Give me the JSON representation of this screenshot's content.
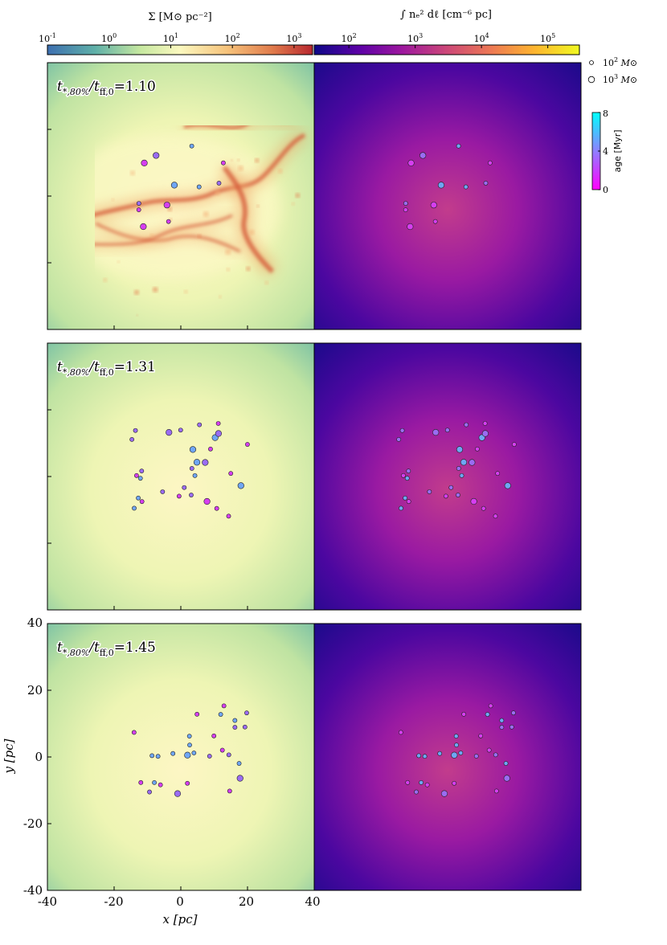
{
  "colorbar_sigma": {
    "label": "Σ [M⊙ pc⁻²]",
    "ticks": [
      {
        "base": "10",
        "exp": "-1",
        "value": 0.1
      },
      {
        "base": "10",
        "exp": "0",
        "value": 1
      },
      {
        "base": "10",
        "exp": "1",
        "value": 10
      },
      {
        "base": "10",
        "exp": "2",
        "value": 100
      },
      {
        "base": "10",
        "exp": "3",
        "value": 1000
      }
    ],
    "range": [
      0.1,
      2000
    ],
    "scale": "log",
    "colormap": "Spectral_r-like",
    "colors": [
      "#3d6fb0",
      "#5fb0a8",
      "#c6e8a0",
      "#fbf8bf",
      "#f6c27a",
      "#e07a4b",
      "#b8272f"
    ]
  },
  "colorbar_em": {
    "label": "∫ nₑ² dℓ [cm⁻⁶ pc]",
    "ticks": [
      {
        "base": "10",
        "exp": "2",
        "value": 100
      },
      {
        "base": "10",
        "exp": "3",
        "value": 1000
      },
      {
        "base": "10",
        "exp": "4",
        "value": 10000
      },
      {
        "base": "10",
        "exp": "5",
        "value": 100000
      }
    ],
    "range": [
      30,
      300000
    ],
    "scale": "log",
    "colormap": "plasma",
    "colors": [
      "#0d0887",
      "#5c01a6",
      "#9c179e",
      "#cc4778",
      "#ed7953",
      "#fdb42f",
      "#f0f921"
    ]
  },
  "mass_legend": [
    {
      "exp": "2",
      "unit": "M⊙",
      "size": "small"
    },
    {
      "exp": "3",
      "unit": "M⊙",
      "size": "large"
    }
  ],
  "age_colorbar": {
    "label": "age [Myr]",
    "ticks": [
      "0",
      "4",
      "8"
    ],
    "range": [
      0,
      8
    ],
    "colors": [
      "#ff00ff",
      "#8f7fff",
      "#00ffff"
    ]
  },
  "panels": [
    {
      "label_ratio": "1.10"
    },
    {
      "label_ratio": "1.31"
    },
    {
      "label_ratio": "1.45"
    }
  ],
  "axes": {
    "xlabel": "x [pc]",
    "ylabel": "y [pc]",
    "x_ticks": [
      "-40",
      "-20",
      "0",
      "20",
      "40"
    ],
    "y_ticks": [
      "40",
      "20",
      "0",
      "-20",
      "-40"
    ],
    "xlim": [
      -40,
      40
    ],
    "ylim": [
      -40,
      40
    ]
  },
  "colors": {
    "sigma_bg": "#cfe6a6",
    "sigma_center": "#fbf8c8",
    "sigma_filament": "#d9603a",
    "em_bg": "#1a0a8a",
    "em_mid": "#8a1aa5",
    "em_bright": "#f08a4a",
    "star_young": "#d63ef0",
    "star_mid": "#9a6cf2",
    "star_old": "#6fa6f5"
  }
}
